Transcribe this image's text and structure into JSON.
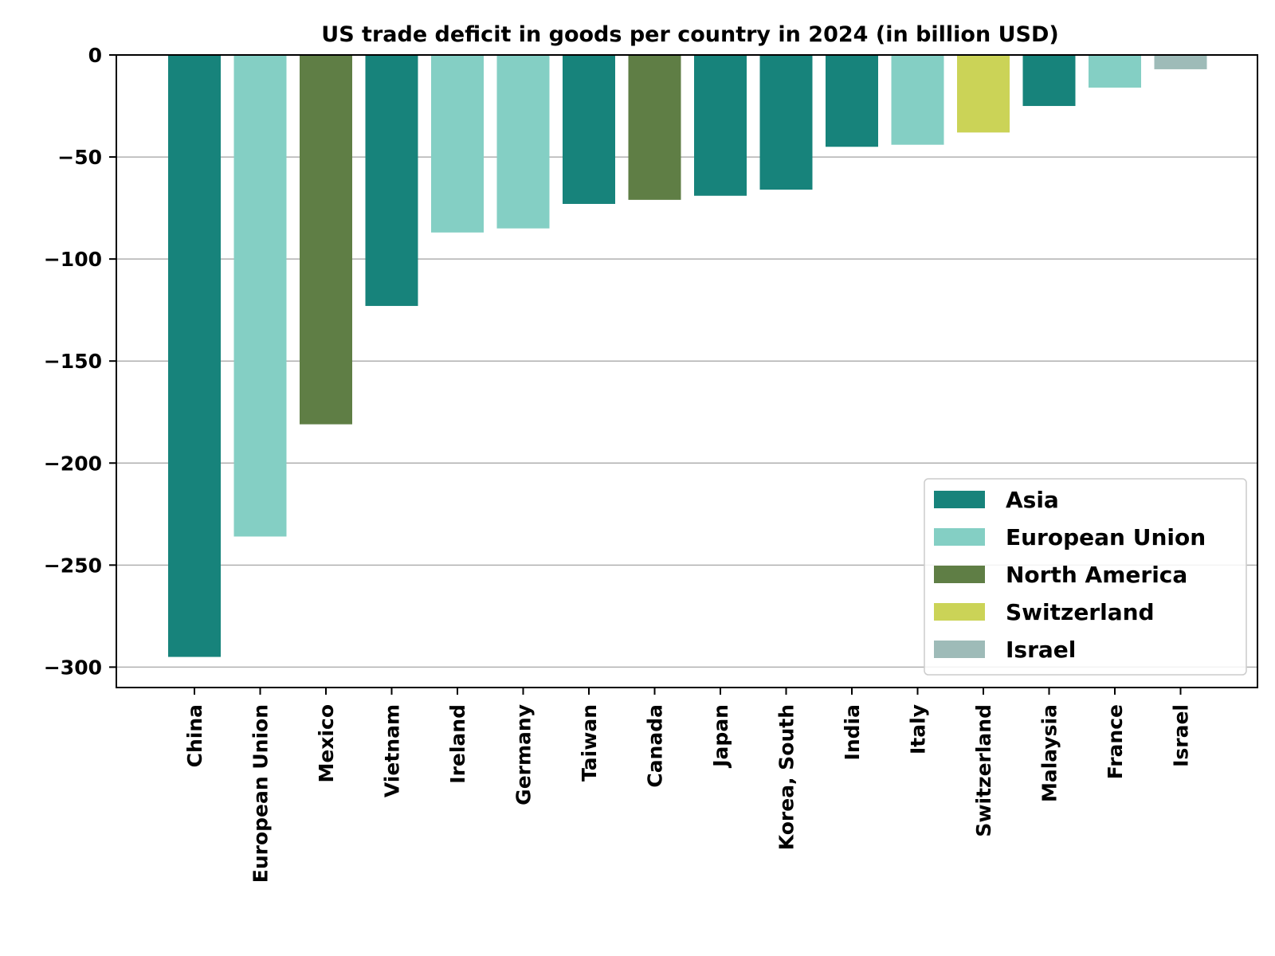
{
  "chart_data": {
    "type": "bar",
    "title": "US trade deficit in goods per country in 2024 (in billion USD)",
    "xlabel": "",
    "ylabel": "",
    "ylim": [
      -310,
      0
    ],
    "yticks": [
      0,
      -50,
      -100,
      -150,
      -200,
      -250,
      -300
    ],
    "ytick_labels": [
      "0",
      "−50",
      "−100",
      "−150",
      "−200",
      "−250",
      "−300"
    ],
    "grid": "y",
    "legend_position": "bottom-right",
    "categories": [
      "China",
      "European Union",
      "Mexico",
      "Vietnam",
      "Ireland",
      "Germany",
      "Taiwan",
      "Canada",
      "Japan",
      "Korea, South",
      "India",
      "Italy",
      "Switzerland",
      "Malaysia",
      "France",
      "Israel"
    ],
    "values": [
      -295,
      -236,
      -181,
      -123,
      -87,
      -85,
      -73,
      -71,
      -69,
      -66,
      -45,
      -44,
      -38,
      -25,
      -16,
      -7
    ],
    "groups": [
      "Asia",
      "European Union",
      "North America",
      "Asia",
      "European Union",
      "European Union",
      "Asia",
      "North America",
      "Asia",
      "Asia",
      "Asia",
      "European Union",
      "Switzerland",
      "Asia",
      "European Union",
      "Israel"
    ],
    "legend": [
      {
        "name": "Asia",
        "color": "#17837b"
      },
      {
        "name": "European Union",
        "color": "#84cfc4"
      },
      {
        "name": "North America",
        "color": "#5f7e45"
      },
      {
        "name": "Switzerland",
        "color": "#cbd357"
      },
      {
        "name": "Israel",
        "color": "#9ebbb8"
      }
    ]
  }
}
